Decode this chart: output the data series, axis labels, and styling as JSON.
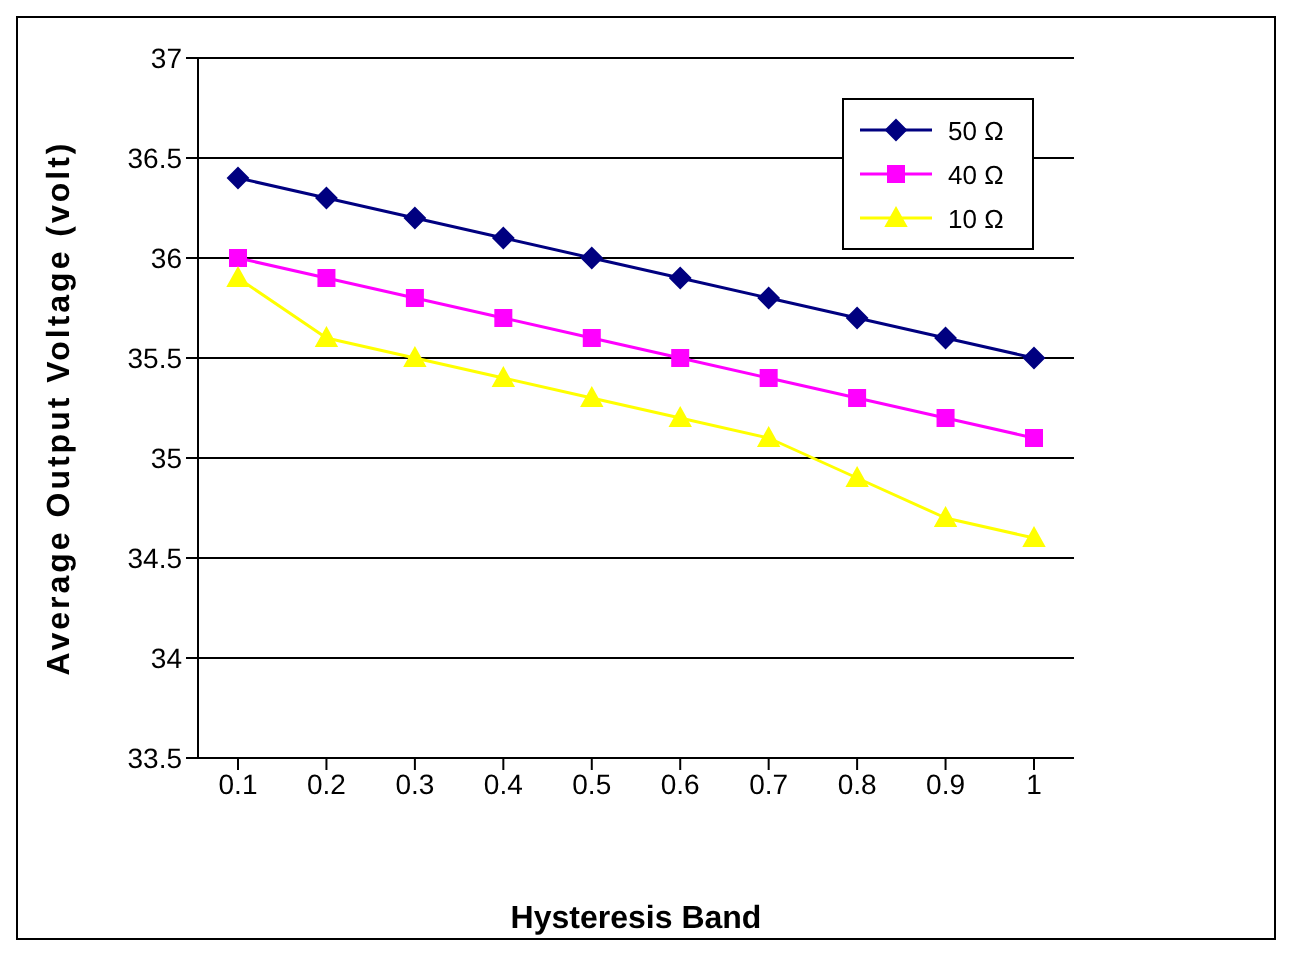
{
  "chart_data": {
    "type": "line",
    "xlabel": "Hysteresis Band",
    "ylabel": "Average Output Voltage (volt)",
    "categories": [
      "0.1",
      "0.2",
      "0.3",
      "0.4",
      "0.5",
      "0.6",
      "0.7",
      "0.8",
      "0.9",
      "1"
    ],
    "series": [
      {
        "name": "50 Ω",
        "color": "#000080",
        "marker": "diamond",
        "values": [
          36.4,
          36.3,
          36.2,
          36.1,
          36.0,
          35.9,
          35.8,
          35.7,
          35.6,
          35.5
        ]
      },
      {
        "name": "40 Ω",
        "color": "#ff00ff",
        "marker": "square",
        "values": [
          36.0,
          35.9,
          35.8,
          35.7,
          35.6,
          35.5,
          35.4,
          35.3,
          35.2,
          35.1
        ]
      },
      {
        "name": "10 Ω",
        "color": "#ffff00",
        "marker": "triangle",
        "values": [
          35.9,
          35.6,
          35.5,
          35.4,
          35.3,
          35.2,
          35.1,
          34.9,
          34.7,
          34.6
        ]
      }
    ],
    "ylim": [
      33.5,
      37
    ],
    "yticks": [
      33.5,
      34,
      34.5,
      35,
      35.5,
      36,
      36.5,
      37
    ],
    "grid": "y",
    "legend": "top right"
  }
}
